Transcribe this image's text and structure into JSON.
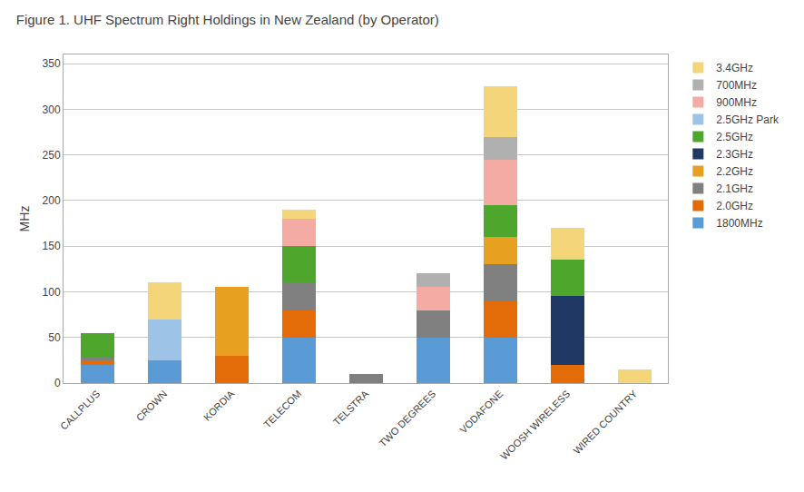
{
  "chart_data": {
    "type": "bar",
    "stacked": true,
    "title": "Figure 1. UHF Spectrum Right Holdings in New Zealand (by Operator)",
    "ylabel": "MHz",
    "categories": [
      "CALLPLUS",
      "CROWN",
      "KORDIA",
      "TELECOM",
      "TELSTRA",
      "TWO DEGREES",
      "VODAFONE",
      "WOOSH WIRELESS",
      "WIRED COUNTRY"
    ],
    "series": [
      {
        "name": "1800MHz",
        "color": "#5b9bd5",
        "values": [
          20,
          25,
          0,
          50,
          0,
          50,
          50,
          0,
          0
        ]
      },
      {
        "name": "2.0GHz",
        "color": "#e36c09",
        "values": [
          5,
          0,
          30,
          30,
          0,
          0,
          40,
          20,
          0
        ]
      },
      {
        "name": "2.1GHz",
        "color": "#808080",
        "values": [
          3,
          0,
          0,
          30,
          10,
          30,
          40,
          0,
          0
        ]
      },
      {
        "name": "2.2GHz",
        "color": "#e8a020",
        "values": [
          0,
          0,
          75,
          0,
          0,
          0,
          30,
          0,
          0
        ]
      },
      {
        "name": "2.3GHz",
        "color": "#1f3864",
        "values": [
          0,
          0,
          0,
          0,
          0,
          0,
          0,
          75,
          0
        ]
      },
      {
        "name": "2.5GHz",
        "color": "#4ea72c",
        "values": [
          27,
          0,
          0,
          40,
          0,
          0,
          35,
          40,
          0
        ]
      },
      {
        "name": "2.5GHz Park",
        "color": "#9dc3e6",
        "values": [
          0,
          45,
          0,
          0,
          0,
          0,
          0,
          0,
          0
        ]
      },
      {
        "name": "900MHz",
        "color": "#f4aba3",
        "values": [
          0,
          0,
          0,
          30,
          0,
          25,
          50,
          0,
          0
        ]
      },
      {
        "name": "700MHz",
        "color": "#b0b0b0",
        "values": [
          0,
          0,
          0,
          0,
          0,
          15,
          25,
          0,
          0
        ]
      },
      {
        "name": "3.4GHz",
        "color": "#f5d57a",
        "values": [
          0,
          40,
          0,
          10,
          0,
          0,
          55,
          35,
          15
        ]
      }
    ],
    "ylim": [
      0,
      360
    ],
    "yticks": [
      0,
      50,
      100,
      150,
      200,
      250,
      300,
      350
    ],
    "grid": true,
    "legend": "upper right"
  }
}
